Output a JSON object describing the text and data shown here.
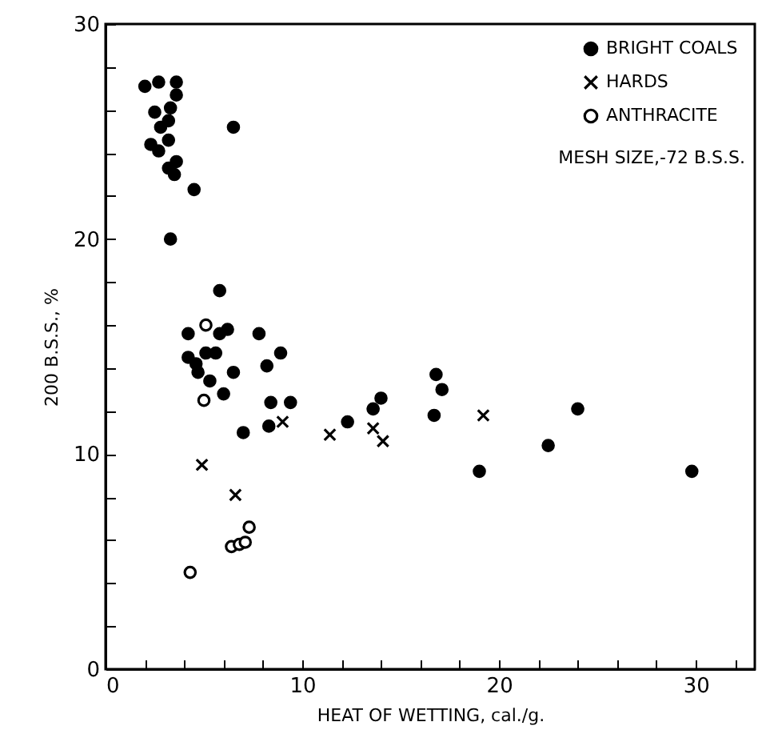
{
  "chart_data": {
    "type": "scatter",
    "xlabel": "HEAT OF WETTING, cal./g.",
    "ylabel": "200 B.S.S., %",
    "xlim": [
      0,
      33
    ],
    "ylim": [
      0,
      30
    ],
    "xticks": [
      0,
      {
        "value": 2,
        "label": null
      },
      {
        "value": 4,
        "label": null
      },
      {
        "value": 6,
        "label": null
      },
      {
        "value": 8,
        "label": null
      },
      10,
      {
        "value": 12,
        "label": null
      },
      {
        "value": 14,
        "label": null
      },
      {
        "value": 16,
        "label": null
      },
      {
        "value": 18,
        "label": null
      },
      20,
      {
        "value": 22,
        "label": null
      },
      {
        "value": 24,
        "label": null
      },
      {
        "value": 26,
        "label": null
      },
      {
        "value": 28,
        "label": null
      },
      30,
      {
        "value": 32,
        "label": null
      }
    ],
    "yticks": [
      0,
      {
        "value": 2,
        "label": null
      },
      {
        "value": 4,
        "label": null
      },
      {
        "value": 6,
        "label": null
      },
      {
        "value": 8,
        "label": null
      },
      10,
      {
        "value": 12,
        "label": null
      },
      {
        "value": 14,
        "label": null
      },
      {
        "value": 16,
        "label": null
      },
      {
        "value": 18,
        "label": null
      },
      20,
      {
        "value": 22,
        "label": null
      },
      {
        "value": 24,
        "label": null
      },
      {
        "value": 26,
        "label": null
      },
      {
        "value": 28,
        "label": null
      },
      30
    ],
    "legend": "top right",
    "annotations": [
      "MESH SIZE,-72 B.S.S."
    ],
    "series": [
      {
        "name": "BRIGHT COALS",
        "color": "#000000",
        "marker": "circle",
        "x": [
          2.0,
          2.7,
          3.6,
          3.6,
          2.5,
          2.8,
          3.2,
          3.3,
          2.3,
          2.7,
          3.2,
          3.6,
          3.2,
          3.5,
          4.5,
          6.5,
          3.3,
          5.8,
          4.2,
          5.8,
          6.2,
          7.8,
          4.2,
          4.6,
          4.7,
          5.3,
          5.1,
          5.6,
          6.5,
          6.0,
          8.2,
          8.9,
          8.4,
          9.4,
          7.0,
          8.3,
          12.3,
          13.6,
          14.0,
          16.8,
          17.1,
          16.7,
          19.0,
          22.5,
          24.0,
          29.8
        ],
        "values": [
          27.1,
          27.3,
          27.3,
          26.7,
          25.9,
          25.2,
          25.5,
          26.1,
          24.4,
          24.1,
          24.6,
          23.6,
          23.3,
          23.0,
          22.3,
          25.2,
          20.0,
          17.6,
          15.6,
          15.6,
          15.8,
          15.6,
          14.5,
          14.2,
          13.8,
          13.4,
          14.7,
          14.7,
          13.8,
          12.8,
          14.1,
          14.7,
          12.4,
          12.4,
          11.0,
          11.3,
          11.5,
          12.1,
          12.6,
          13.7,
          13.0,
          11.8,
          9.2,
          10.4,
          12.1,
          9.2
        ]
      },
      {
        "name": "HARDS",
        "color": "#000000",
        "marker": "cross",
        "x": [
          9.0,
          11.4,
          13.6,
          14.1,
          4.9,
          6.6,
          19.2
        ],
        "values": [
          11.5,
          10.9,
          11.2,
          10.6,
          9.5,
          8.1,
          11.8
        ]
      },
      {
        "name": "ANTHRACITE",
        "color": "#000000",
        "marker": "circle",
        "x": [
          5.1,
          5.0,
          7.3,
          6.4,
          6.8,
          7.1,
          4.3
        ],
        "values": [
          16.0,
          12.5,
          6.6,
          5.7,
          5.8,
          5.9,
          4.5
        ]
      }
    ]
  }
}
